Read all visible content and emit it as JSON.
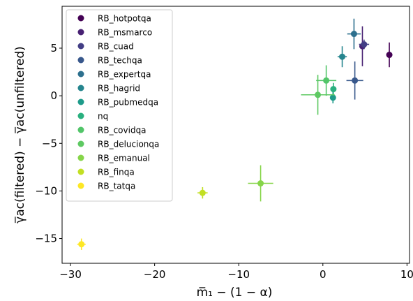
{
  "chart_data": {
    "type": "scatter",
    "xlabel": "m̅₁ − (1 − α)",
    "ylabel": "γ̅ac(filtered) − γ̅ac(unfiltered)",
    "xlim": [
      -31,
      10.3
    ],
    "ylim": [
      -17.6,
      9.4
    ],
    "x_ticks": [
      -30,
      -20,
      -10,
      0,
      10
    ],
    "y_ticks": [
      -15,
      -10,
      -5,
      0,
      5
    ],
    "x_tick_labels": [
      "−30",
      "−20",
      "−10",
      "0",
      "10"
    ],
    "y_tick_labels": [
      "−15",
      "−10",
      "−5",
      "0",
      "5"
    ],
    "grid": false,
    "legend_position": "top-left",
    "series": [
      {
        "name": "RB_hotpotqa",
        "color": "#440154",
        "x": 7.9,
        "y": 4.3,
        "xerr": 0.25,
        "yerr": 1.3
      },
      {
        "name": "RB_msmarco",
        "color": "#482173",
        "x": 4.7,
        "y": 5.2,
        "xerr": 0.3,
        "yerr": 2.1
      },
      {
        "name": "RB_cuad",
        "color": "#433e85",
        "x": 4.9,
        "y": 5.4,
        "xerr": 0.6,
        "yerr": 0.5
      },
      {
        "name": "RB_techqa",
        "color": "#38588c",
        "x": 3.8,
        "y": 1.6,
        "xerr": 1.0,
        "yerr": 2.0
      },
      {
        "name": "RB_expertqa",
        "color": "#2d708e",
        "x": 3.7,
        "y": 6.5,
        "xerr": 0.8,
        "yerr": 1.6
      },
      {
        "name": "RB_hagrid",
        "color": "#25858e",
        "x": 2.3,
        "y": 4.1,
        "xerr": 0.55,
        "yerr": 1.1
      },
      {
        "name": "RB_pubmedqa",
        "color": "#1e9b8a",
        "x": 1.2,
        "y": -0.2,
        "xerr": 0.25,
        "yerr": 0.6
      },
      {
        "name": "nq",
        "color": "#2ab07f",
        "x": 1.25,
        "y": 0.7,
        "xerr": 0.35,
        "yerr": 0.65
      },
      {
        "name": "RB_covidqa",
        "color": "#52c569",
        "x": 0.4,
        "y": 1.6,
        "xerr": 1.2,
        "yerr": 1.6
      },
      {
        "name": "RB_delucionqa",
        "color": "#5ec962",
        "x": -0.6,
        "y": 0.1,
        "xerr": 2.0,
        "yerr": 2.1
      },
      {
        "name": "RB_emanual",
        "color": "#86d549",
        "x": -7.4,
        "y": -9.2,
        "xerr": 1.5,
        "yerr": 1.9
      },
      {
        "name": "RB_finqa",
        "color": "#c2df23",
        "x": -14.3,
        "y": -10.2,
        "xerr": 0.6,
        "yerr": 0.6
      },
      {
        "name": "RB_tatqa",
        "color": "#fde725",
        "x": -28.7,
        "y": -15.6,
        "xerr": 0.5,
        "yerr": 0.6
      }
    ]
  }
}
